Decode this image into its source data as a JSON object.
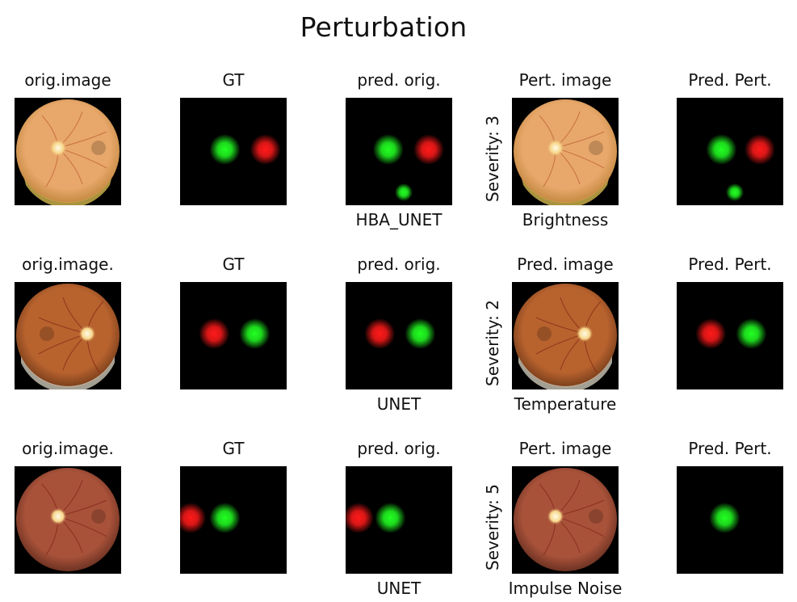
{
  "figure": {
    "title": "Perturbation",
    "rows": [
      {
        "titles": [
          "orig.image",
          "GT",
          "pred. orig.",
          "Pert. image",
          "Pred. Pert."
        ],
        "model": "HBA_UNET",
        "perturbation": "Brightness",
        "severity_label": "Severity: 3",
        "fundus_tone": "bright",
        "disc_side": "left",
        "gt": {
          "green_x": 0.42,
          "red_x": 0.8
        },
        "pred_orig": {
          "green_x": 0.4,
          "red_x": 0.78,
          "extra_green": true
        },
        "pred_pert": {
          "green_x": 0.42,
          "red_x": 0.78,
          "extra_green": true,
          "green_present": true,
          "red_present": true
        }
      },
      {
        "titles": [
          "orig.image.",
          "GT",
          "pred. orig.",
          "Pred. image",
          "Pred. Pert."
        ],
        "model": "UNET",
        "perturbation": "Temperature",
        "severity_label": "Severity: 2",
        "fundus_tone": "warm",
        "disc_side": "right",
        "gt": {
          "green_x": 0.7,
          "red_x": 0.32
        },
        "pred_orig": {
          "green_x": 0.7,
          "red_x": 0.32,
          "extra_green": false
        },
        "pred_pert": {
          "green_x": 0.7,
          "red_x": 0.32,
          "extra_green": false,
          "green_present": true,
          "red_present": true
        }
      },
      {
        "titles": [
          "orig.image.",
          "GT",
          "pred. orig.",
          "Pert. image",
          "Pred. Pert."
        ],
        "model": "UNET",
        "perturbation": "Impulse Noise",
        "severity_label": "Severity: 5",
        "fundus_tone": "dark",
        "disc_side": "left",
        "gt": {
          "green_x": 0.42,
          "red_x": 0.1
        },
        "pred_orig": {
          "green_x": 0.42,
          "red_x": 0.12,
          "extra_green": false
        },
        "pred_pert": {
          "green_x": 0.45,
          "red_x": 0.1,
          "extra_green": false,
          "green_present": true,
          "red_present": false
        }
      }
    ],
    "colors": {
      "green": "#22ff22",
      "red": "#ff1a1a",
      "bright_fundus": "#e8a86b",
      "warm_fundus": "#b8622e",
      "dark_fundus": "#a9523a"
    }
  }
}
